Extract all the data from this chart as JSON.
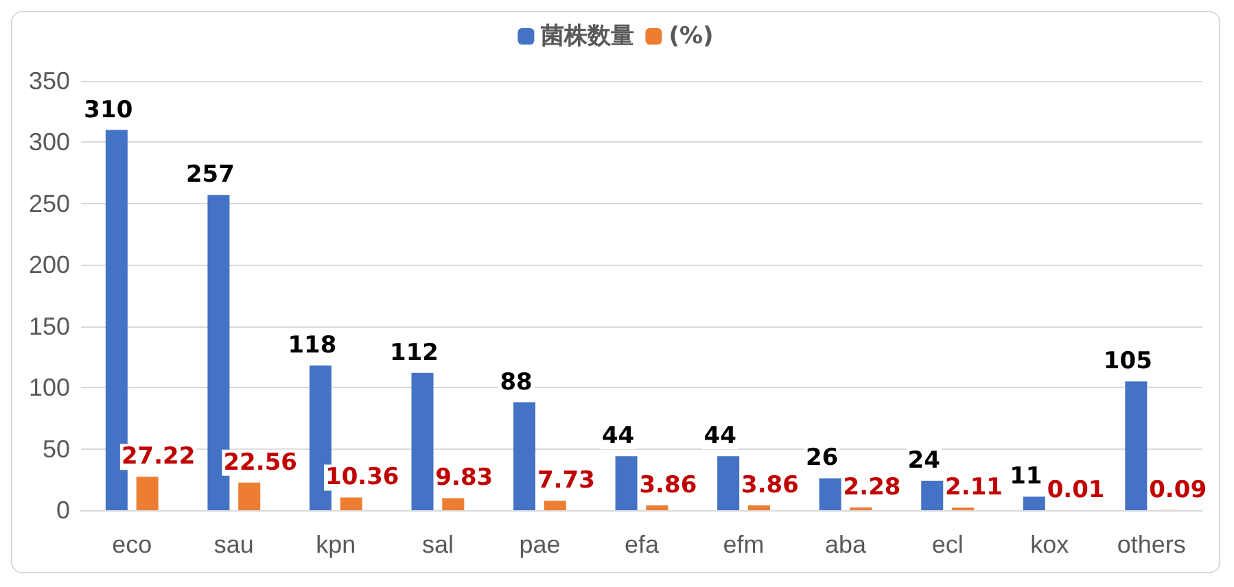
{
  "chart_data": {
    "type": "bar",
    "categories": [
      "eco",
      "sau",
      "kpn",
      "sal",
      "pae",
      "efa",
      "efm",
      "aba",
      "ecl",
      "kox",
      "others"
    ],
    "series": [
      {
        "name": "菌株数量",
        "color": "#4472c4",
        "values": [
          310,
          257,
          118,
          112,
          88,
          44,
          44,
          26,
          24,
          11,
          105
        ]
      },
      {
        "name": "(%)",
        "color": "#ed7d31",
        "values": [
          27.22,
          22.56,
          10.36,
          9.83,
          7.73,
          3.86,
          3.86,
          2.28,
          2.11,
          0.01,
          0.09
        ]
      }
    ],
    "ylim": [
      0,
      350
    ],
    "yticks": [
      0,
      50,
      100,
      150,
      200,
      250,
      300,
      350
    ],
    "grid": "y",
    "legend": "top",
    "data_labels": true
  }
}
